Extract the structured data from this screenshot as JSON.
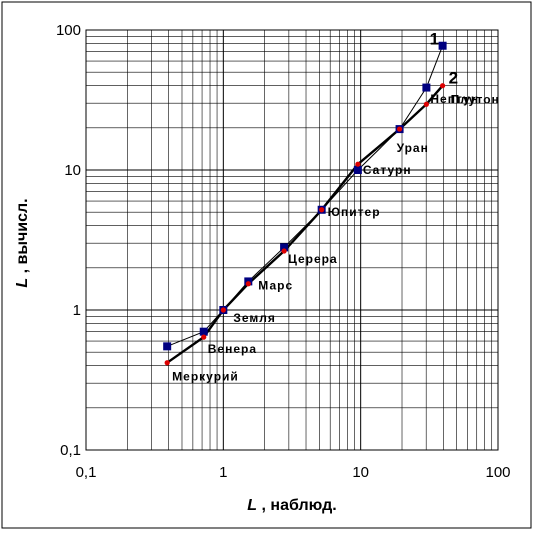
{
  "chart_data": {
    "type": "scatter",
    "x_scale": "log",
    "y_scale": "log",
    "xlim": [
      0.1,
      100
    ],
    "ylim": [
      0.1,
      100
    ],
    "grid": true,
    "x_ticks": [
      "0,1",
      "1",
      "10",
      "100"
    ],
    "y_ticks": [
      "0,1",
      "1",
      "10",
      "100"
    ],
    "xlabel_var": "L",
    "xlabel_rest": " , наблюд.",
    "ylabel_var": "L",
    "ylabel_rest": " , вычисл.",
    "series": [
      {
        "name": "1",
        "color": "#000080",
        "marker": "square",
        "x": [
          0.39,
          0.72,
          1.0,
          1.52,
          2.77,
          5.2,
          9.54,
          19.2,
          30.1,
          39.5
        ],
        "y": [
          0.55,
          0.7,
          1.0,
          1.6,
          2.8,
          5.2,
          10.0,
          19.6,
          38.8,
          77.2
        ]
      },
      {
        "name": "2",
        "color": "#dd0000",
        "marker": "dot",
        "x": [
          0.39,
          0.72,
          1.0,
          1.52,
          2.77,
          5.2,
          9.54,
          19.2,
          30.1,
          39.5
        ],
        "y": [
          0.42,
          0.64,
          1.0,
          1.54,
          2.64,
          5.2,
          11.0,
          19.6,
          29.5,
          40.0
        ]
      }
    ],
    "annotations": [
      {
        "text": "Меркурий",
        "x": 0.39,
        "y": 0.42
      },
      {
        "text": "Венера",
        "x": 0.72,
        "y": 0.64
      },
      {
        "text": "Земля",
        "x": 1.0,
        "y": 1.0
      },
      {
        "text": "Марс",
        "x": 1.52,
        "y": 1.54
      },
      {
        "text": "Церера",
        "x": 2.77,
        "y": 2.64
      },
      {
        "text": "Юпитер",
        "x": 5.2,
        "y": 5.2
      },
      {
        "text": "Сатурн",
        "x": 9.54,
        "y": 10.0
      },
      {
        "text": "Уран",
        "x": 19.2,
        "y": 19.6
      },
      {
        "text": "Нептун",
        "x": 30.1,
        "y": 29.5
      },
      {
        "text": "Плутон",
        "x": 39.5,
        "y": 40.0
      }
    ]
  }
}
